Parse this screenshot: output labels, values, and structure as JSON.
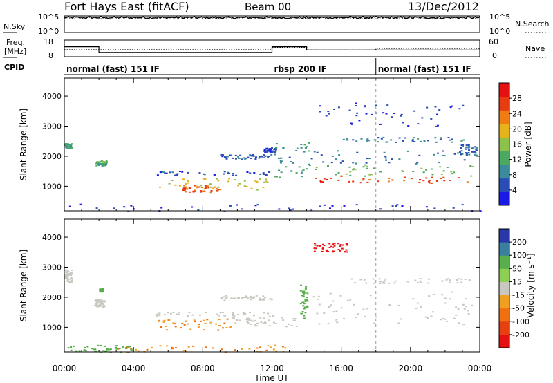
{
  "header": {
    "station": "Fort Hays East (fitACF)",
    "beam": "Beam 00",
    "date": "13/Dec/2012"
  },
  "colors": {
    "axis": "#000000",
    "noise": "#000000",
    "divider": "#9a9a9a"
  },
  "chart_data": [
    {
      "type": "line",
      "panel": "noise",
      "left_label": "N.Sky",
      "right_label": "N.Search",
      "left_ticks": [
        "10^5",
        "10^0"
      ],
      "right_ticks": [
        "10^5",
        "10^0"
      ],
      "series": [
        {
          "name": "N.Sky",
          "x": [
            0,
            24
          ],
          "y": [
            4.5,
            4.5
          ]
        },
        {
          "name": "N.Search",
          "x": [
            0,
            24
          ],
          "y": [
            4.3,
            4.3
          ]
        }
      ]
    },
    {
      "type": "line",
      "panel": "frequency",
      "left_label": "Freq. [MHz]",
      "right_label": "Nave",
      "left_ticks": [
        18,
        8
      ],
      "right_ticks": [
        60,
        0
      ],
      "ylim": [
        8,
        18
      ],
      "series": [
        {
          "name": "Freq.",
          "x": [
            0,
            2,
            2,
            12,
            12,
            14,
            14,
            24
          ],
          "y": [
            14,
            14,
            10.6,
            10.6,
            14,
            14,
            12,
            12
          ]
        },
        {
          "name": "Nave",
          "x": [
            0,
            12,
            12,
            14,
            14,
            18,
            18,
            24
          ],
          "y": [
            25,
            25,
            34,
            34,
            24,
            24,
            30,
            30
          ]
        }
      ]
    },
    {
      "type": "table",
      "panel": "cpid",
      "label": "CPID",
      "segments": [
        {
          "start": 0,
          "end": 12,
          "text": "normal (fast) 151 IF"
        },
        {
          "start": 12,
          "end": 18,
          "text": "rbsp 200 IF"
        },
        {
          "start": 18,
          "end": 24,
          "text": "normal (fast) 151 IF"
        }
      ]
    },
    {
      "type": "heatmap",
      "panel": "power",
      "ylabel": "Slant Range [km]",
      "yticks": [
        1000,
        2000,
        3000,
        4000
      ],
      "ylim": [
        180,
        4600
      ],
      "xlim": [
        0,
        24
      ],
      "colorbar": {
        "label": "Power [dB]",
        "ticks": [
          4,
          8,
          12,
          16,
          20,
          24,
          28
        ],
        "range": [
          0,
          32
        ],
        "colors": [
          "#1a1ae6",
          "#2a4cb5",
          "#3a8c9a",
          "#4aa860",
          "#8cc24a",
          "#e6b31a",
          "#f07d14",
          "#e63c0f",
          "#e61010"
        ]
      },
      "features": [
        {
          "x": [
            5.3,
            11.8
          ],
          "y": [
            900,
            1300
          ],
          "value": 18
        },
        {
          "x": [
            6.8,
            9
          ],
          "y": [
            820,
            1060
          ],
          "value": 26
        },
        {
          "x": [
            5.2,
            12
          ],
          "y": [
            1380,
            1520
          ],
          "value": 5
        },
        {
          "x": [
            9,
            12
          ],
          "y": [
            1920,
            2080
          ],
          "value": 6
        },
        {
          "x": [
            11.5,
            12.2
          ],
          "y": [
            2150,
            2300
          ],
          "value": 5
        },
        {
          "x": [
            12.1,
            14.1
          ],
          "y": [
            1300,
            2500
          ],
          "value": 10
        },
        {
          "x": [
            14.1,
            23.6
          ],
          "y": [
            1120,
            1360
          ],
          "value": 26
        },
        {
          "x": [
            14.1,
            23.6
          ],
          "y": [
            1360,
            1750
          ],
          "value": 14
        },
        {
          "x": [
            14.2,
            23.5
          ],
          "y": [
            1750,
            2200
          ],
          "value": 7
        },
        {
          "x": [
            16,
            23.4
          ],
          "y": [
            2480,
            2650
          ],
          "value": 8
        },
        {
          "x": [
            14.5,
            23
          ],
          "y": [
            3000,
            3800
          ],
          "value": 4
        },
        {
          "x": [
            0,
            0.4
          ],
          "y": [
            2280,
            2450
          ],
          "value": 11
        },
        {
          "x": [
            1.8,
            2.4
          ],
          "y": [
            1700,
            1880
          ],
          "value": 12
        },
        {
          "x": [
            0,
            24
          ],
          "y": [
            180,
            420
          ],
          "value": 4
        },
        {
          "x": [
            22.8,
            23.8
          ],
          "y": [
            2050,
            2400
          ],
          "value": 6
        }
      ]
    },
    {
      "type": "heatmap",
      "panel": "velocity",
      "ylabel": "Slant Range [km]",
      "yticks": [
        1000,
        2000,
        3000,
        4000
      ],
      "ylim": [
        180,
        4600
      ],
      "xlim": [
        0,
        24
      ],
      "xticks": [
        "00:00",
        "04:00",
        "08:00",
        "12:00",
        "16:00",
        "20:00",
        "00:00"
      ],
      "xlabel": "Time UT",
      "colorbar": {
        "label": "Velocity [m s⁻¹]",
        "ticks": [
          "200",
          "100",
          "50",
          "15",
          "-15",
          "-50",
          "-100",
          "-200"
        ],
        "colors": [
          "#2838a8",
          "#3a7f9f",
          "#58b04a",
          "#8ccf52",
          "#c8c8c0",
          "#f0a020",
          "#f07010",
          "#e64010",
          "#e61010"
        ]
      },
      "features": [
        {
          "x": [
            5.3,
            9.6
          ],
          "y": [
            900,
            1300
          ],
          "value": -50
        },
        {
          "x": [
            9.6,
            13.4
          ],
          "y": [
            1040,
            1350
          ],
          "value": 0
        },
        {
          "x": [
            5.2,
            12
          ],
          "y": [
            1380,
            1520
          ],
          "value": 0
        },
        {
          "x": [
            9,
            12
          ],
          "y": [
            1920,
            2080
          ],
          "value": 0
        },
        {
          "x": [
            13.6,
            14
          ],
          "y": [
            1300,
            2450
          ],
          "value": 60
        },
        {
          "x": [
            14.1,
            23.6
          ],
          "y": [
            1120,
            2200
          ],
          "value": 0
        },
        {
          "x": [
            16,
            23.4
          ],
          "y": [
            2480,
            2650
          ],
          "value": 0
        },
        {
          "x": [
            14.3,
            16.3
          ],
          "y": [
            3500,
            3820
          ],
          "value": -200
        },
        {
          "x": [
            3,
            13
          ],
          "y": [
            180,
            420
          ],
          "value": -50
        },
        {
          "x": [
            0,
            4
          ],
          "y": [
            180,
            420
          ],
          "value": 50
        },
        {
          "x": [
            0,
            0.4
          ],
          "y": [
            2500,
            2950
          ],
          "value": 0
        },
        {
          "x": [
            1.7,
            2.3
          ],
          "y": [
            1700,
            1950
          ],
          "value": 0
        },
        {
          "x": [
            2,
            2.2
          ],
          "y": [
            2200,
            2320
          ],
          "value": 60
        }
      ]
    }
  ]
}
